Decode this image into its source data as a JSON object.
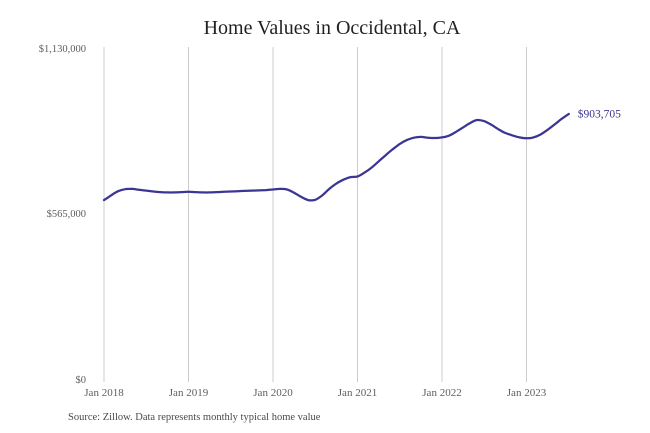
{
  "title": "Home Values in Occidental, CA",
  "source_note": "Source: Zillow. Data represents monthly typical home value",
  "colors": {
    "line": "#3b3692",
    "grid": "#cccccc",
    "title_text": "#222222",
    "axis_text": "#5e5e5e",
    "source_text": "#4a4a4a",
    "background": "#ffffff"
  },
  "chart_data": {
    "type": "line",
    "title": "Home Values in Occidental, CA",
    "unit": "USD",
    "x_start_month": "2018-01",
    "x_end_month": "2023-07",
    "x_tick_labels": [
      "Jan 2018",
      "Jan 2019",
      "Jan 2020",
      "Jan 2021",
      "Jan 2022",
      "Jan 2023"
    ],
    "y_tick_labels": [
      "$0",
      "$565,000",
      "$1,130,000"
    ],
    "ylim": [
      0,
      1130000
    ],
    "grid": "vertical",
    "legend": "none",
    "last_value_label": "$903,705",
    "series": [
      {
        "name": "Monthly typical home value",
        "values": [
          612000,
          628000,
          642000,
          649000,
          650000,
          647000,
          644000,
          641000,
          639000,
          638000,
          638000,
          639000,
          640000,
          639000,
          638000,
          638000,
          639000,
          640000,
          641000,
          642000,
          643000,
          644000,
          645000,
          646000,
          648000,
          650000,
          648000,
          637000,
          623000,
          612000,
          613000,
          628000,
          650000,
          668000,
          681000,
          690000,
          692000,
          705000,
          722000,
          743000,
          764000,
          784000,
          802000,
          815000,
          823000,
          826000,
          823000,
          822000,
          824000,
          830000,
          843000,
          858000,
          873000,
          883000,
          879000,
          867000,
          852000,
          839000,
          831000,
          824000,
          821000,
          824000,
          834000,
          850000,
          868000,
          887000,
          903705
        ]
      }
    ]
  }
}
